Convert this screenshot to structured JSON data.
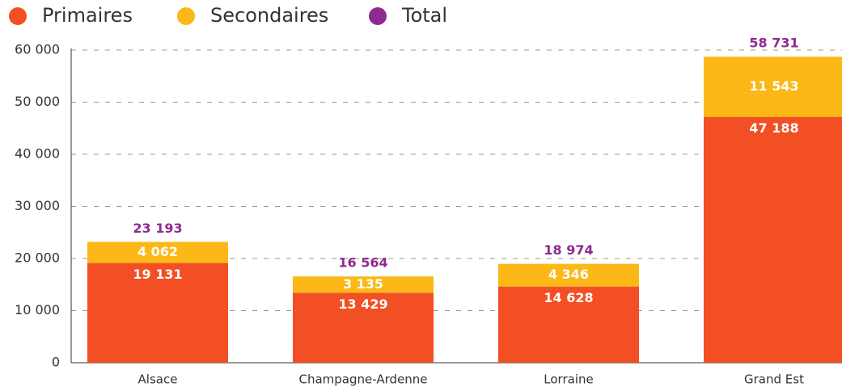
{
  "chart_data": {
    "type": "stacked_bar",
    "categories": [
      "Alsace",
      "Champagne-Ardenne",
      "Lorraine",
      "Grand Est"
    ],
    "series": [
      {
        "name": "Primaires",
        "color": "#f24f24",
        "values": [
          19131,
          13429,
          14628,
          47188
        ],
        "value_labels": [
          "19 131",
          "13 429",
          "14 628",
          "47 188"
        ]
      },
      {
        "name": "Secondaires",
        "color": "#fbb816",
        "values": [
          4062,
          3135,
          4346,
          11543
        ],
        "value_labels": [
          "4 062",
          "3 135",
          "4 346",
          "11 543"
        ]
      },
      {
        "name": "Total",
        "color": "#8e2a8f",
        "values": [
          23193,
          16564,
          18974,
          58731
        ],
        "value_labels": [
          "23 193",
          "16 564",
          "18 974",
          "58 731"
        ]
      }
    ],
    "ylim": [
      0,
      60000
    ],
    "yticks": [
      0,
      {
        "value": 10000,
        "label": "10 000"
      },
      {
        "value": 20000,
        "label": "20 000"
      },
      {
        "value": 30000,
        "label": "30 000"
      },
      {
        "value": 40000,
        "label": "40 000"
      },
      {
        "value": 50000,
        "label": "50 000"
      },
      {
        "value": 60000,
        "label": "60 000"
      }
    ],
    "grid": true,
    "legend": "top-left"
  }
}
